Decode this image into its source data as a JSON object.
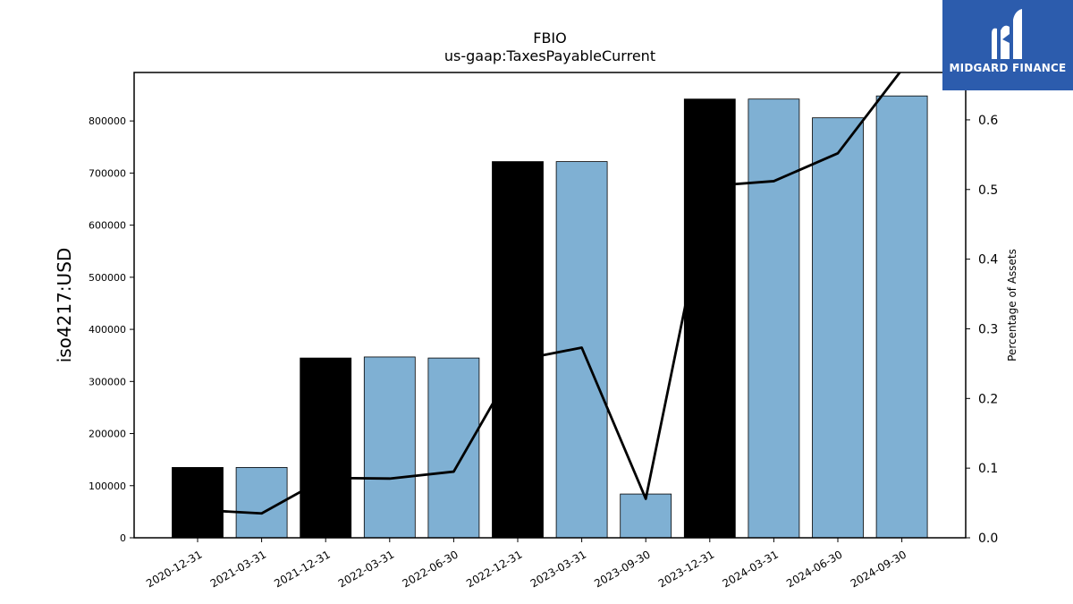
{
  "chart_data": {
    "type": "bar",
    "title": "FBIO",
    "subtitle": "us-gaap:TaxesPayableCurrent",
    "ylabel": "iso4217:USD",
    "y2label": "Percentage of Assets",
    "categories": [
      "2020-12-31",
      "2021-03-31",
      "2021-12-31",
      "2022-03-31",
      "2022-06-30",
      "2022-12-31",
      "2023-03-31",
      "2023-09-30",
      "2023-12-31",
      "2024-03-31",
      "2024-06-30",
      "2024-09-30"
    ],
    "series": [
      {
        "type": "bar",
        "values": [
          135000,
          135000,
          345000,
          347000,
          345000,
          722000,
          722000,
          84000,
          842000,
          842000,
          806000,
          848000
        ],
        "annual": [
          true,
          false,
          true,
          false,
          false,
          true,
          false,
          false,
          true,
          false,
          false,
          false
        ],
        "colors": {
          "annual": "#000000",
          "quarterly": "#7fb0d3"
        }
      },
      {
        "type": "line",
        "axis": "right",
        "values": [
          0.04,
          0.035,
          0.086,
          0.085,
          0.095,
          0.255,
          0.273,
          0.056,
          0.505,
          0.512,
          0.552,
          0.672
        ],
        "color": "#000000"
      }
    ],
    "ylim": [
      0,
      893000
    ],
    "y2lim": [
      0,
      0.668
    ],
    "yticks": [
      0,
      100000,
      200000,
      300000,
      400000,
      500000,
      600000,
      700000,
      800000
    ],
    "y2ticks": [
      0.0,
      0.1,
      0.2,
      0.3,
      0.4,
      0.5,
      0.6
    ],
    "grid": false,
    "legend": "none"
  },
  "logo": {
    "text": "MIDGARD FINANCE",
    "background": "#2c5cad"
  }
}
